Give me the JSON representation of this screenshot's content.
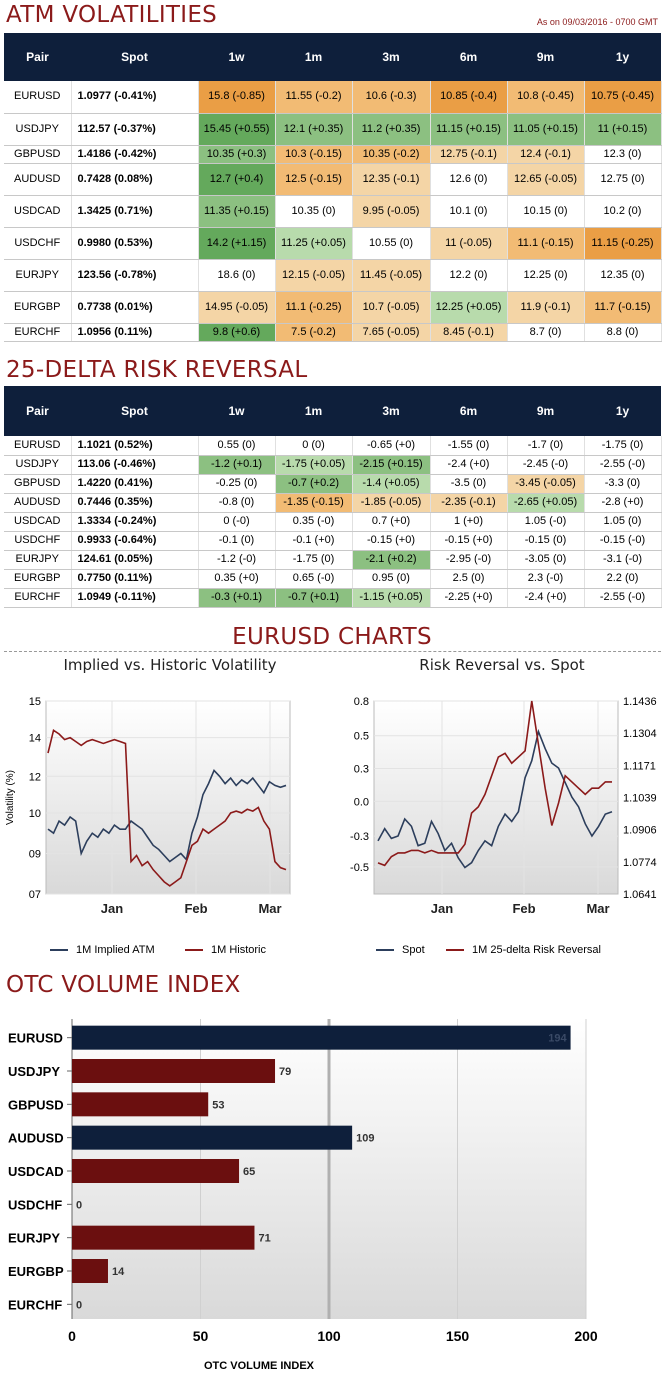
{
  "atm": {
    "title": "ATM VOLATILITIES",
    "as_of": "As on 09/03/2016 - 0700 GMT",
    "headers": [
      "Pair",
      "Spot",
      "1w",
      "1m",
      "3m",
      "6m",
      "9m",
      "1y"
    ],
    "rows": [
      {
        "pair": "EURUSD",
        "spot": "1.0977 (-0.41%)",
        "cells": [
          "15.8 (-0.85)",
          "11.55 (-0.2)",
          "10.6 (-0.3)",
          "10.85 (-0.4)",
          "10.8 (-0.45)",
          "10.75 (-0.45)"
        ],
        "colors": [
          "do",
          "mo",
          "mo",
          "do",
          "mo",
          "do"
        ]
      },
      {
        "pair": "USDJPY",
        "spot": "112.57 (-0.37%)",
        "cells": [
          "15.45 (+0.55)",
          "12.1 (+0.35)",
          "11.2 (+0.35)",
          "11.15 (+0.15)",
          "11.05 (+0.15)",
          "11 (+0.15)"
        ],
        "colors": [
          "dg",
          "mg",
          "mg",
          "mg",
          "mg",
          "mg"
        ]
      },
      {
        "pair": "GBPUSD",
        "spot": "1.4186 (-0.42%)",
        "cells": [
          "10.35 (+0.3)",
          "10.3 (-0.15)",
          "10.35 (-0.2)",
          "12.75 (-0.1)",
          "12.4 (-0.1)",
          "12.3 (0)"
        ],
        "colors": [
          "mg",
          "mo",
          "mo",
          "lo",
          "lo",
          ""
        ]
      },
      {
        "pair": "AUDUSD",
        "spot": "0.7428 (0.08%)",
        "cells": [
          "12.7 (+0.4)",
          "12.5 (-0.15)",
          "12.35 (-0.1)",
          "12.6 (0)",
          "12.65 (-0.05)",
          "12.75 (0)"
        ],
        "colors": [
          "dg",
          "mo",
          "lo",
          "",
          "lo",
          ""
        ]
      },
      {
        "pair": "USDCAD",
        "spot": "1.3425 (0.71%)",
        "cells": [
          "11.35 (+0.15)",
          "10.35 (0)",
          "9.95 (-0.05)",
          "10.1 (0)",
          "10.15 (0)",
          "10.2 (0)"
        ],
        "colors": [
          "mg",
          "",
          "lo",
          "",
          "",
          ""
        ]
      },
      {
        "pair": "USDCHF",
        "spot": "0.9980 (0.53%)",
        "cells": [
          "14.2 (+1.15)",
          "11.25 (+0.05)",
          "10.55 (0)",
          "11 (-0.05)",
          "11.1 (-0.15)",
          "11.15 (-0.25)"
        ],
        "colors": [
          "dg",
          "lg",
          "",
          "lo",
          "mo",
          "do"
        ]
      },
      {
        "pair": "EURJPY",
        "spot": "123.56 (-0.78%)",
        "cells": [
          "18.6 (0)",
          "12.15 (-0.05)",
          "11.45 (-0.05)",
          "12.2 (0)",
          "12.25 (0)",
          "12.35 (0)"
        ],
        "colors": [
          "",
          "lo",
          "lo",
          "",
          "",
          ""
        ]
      },
      {
        "pair": "EURGBP",
        "spot": "0.7738 (0.01%)",
        "cells": [
          "14.95 (-0.05)",
          "11.1 (-0.25)",
          "10.7 (-0.05)",
          "12.25 (+0.05)",
          "11.9 (-0.1)",
          "11.7 (-0.15)"
        ],
        "colors": [
          "lo",
          "mo",
          "lo",
          "lg",
          "lo",
          "mo"
        ]
      },
      {
        "pair": "EURCHF",
        "spot": "1.0956 (0.11%)",
        "cells": [
          "9.8 (+0.6)",
          "7.5 (-0.2)",
          "7.65 (-0.05)",
          "8.45 (-0.1)",
          "8.7 (0)",
          "8.8 (0)"
        ],
        "colors": [
          "dg",
          "mo",
          "lo",
          "lo",
          "",
          ""
        ]
      }
    ]
  },
  "rr": {
    "title": "25-DELTA RISK REVERSAL",
    "headers": [
      "Pair",
      "Spot",
      "1w",
      "1m",
      "3m",
      "6m",
      "9m",
      "1y"
    ],
    "rows": [
      {
        "pair": "EURUSD",
        "spot": "1.1021 (0.52%)",
        "cells": [
          "0.55 (0)",
          "0 (0)",
          "-0.65 (+0)",
          "-1.55 (0)",
          "-1.7 (0)",
          "-1.75 (0)"
        ],
        "colors": [
          "",
          "",
          "",
          "",
          "",
          ""
        ]
      },
      {
        "pair": "USDJPY",
        "spot": "113.06 (-0.46%)",
        "cells": [
          "-1.2 (+0.1)",
          "-1.75 (+0.05)",
          "-2.15 (+0.15)",
          "-2.4 (+0)",
          "-2.45 (-0)",
          "-2.55 (-0)"
        ],
        "colors": [
          "mg",
          "lg",
          "mg",
          "",
          "",
          ""
        ]
      },
      {
        "pair": "GBPUSD",
        "spot": "1.4220 (0.41%)",
        "cells": [
          "-0.25 (0)",
          "-0.7 (+0.2)",
          "-1.4 (+0.05)",
          "-3.5 (0)",
          "-3.45 (-0.05)",
          "-3.3 (0)"
        ],
        "colors": [
          "",
          "mg",
          "lg",
          "",
          "lo",
          ""
        ]
      },
      {
        "pair": "AUDUSD",
        "spot": "0.7446 (0.35%)",
        "cells": [
          "-0.8 (0)",
          "-1.35 (-0.15)",
          "-1.85 (-0.05)",
          "-2.35 (-0.1)",
          "-2.65 (+0.05)",
          "-2.8 (+0)"
        ],
        "colors": [
          "",
          "mo",
          "lo",
          "lo",
          "lg",
          ""
        ]
      },
      {
        "pair": "USDCAD",
        "spot": "1.3334 (-0.24%)",
        "cells": [
          "0 (-0)",
          "0.35 (-0)",
          "0.7 (+0)",
          "1 (+0)",
          "1.05 (-0)",
          "1.05 (0)"
        ],
        "colors": [
          "",
          "",
          "",
          "",
          "",
          ""
        ]
      },
      {
        "pair": "USDCHF",
        "spot": "0.9933 (-0.64%)",
        "cells": [
          "-0.1 (0)",
          "-0.1 (+0)",
          "-0.15 (+0)",
          "-0.15 (+0)",
          "-0.15 (0)",
          "-0.15 (-0)"
        ],
        "colors": [
          "",
          "",
          "",
          "",
          "",
          ""
        ]
      },
      {
        "pair": "EURJPY",
        "spot": "124.61 (0.05%)",
        "cells": [
          "-1.2 (-0)",
          "-1.75 (0)",
          "-2.1 (+0.2)",
          "-2.95 (-0)",
          "-3.05 (0)",
          "-3.1 (-0)"
        ],
        "colors": [
          "",
          "",
          "mg",
          "",
          "",
          ""
        ]
      },
      {
        "pair": "EURGBP",
        "spot": "0.7750 (0.11%)",
        "cells": [
          "0.35 (+0)",
          "0.65 (-0)",
          "0.95 (0)",
          "2.5 (0)",
          "2.3 (-0)",
          "2.2 (0)"
        ],
        "colors": [
          "",
          "",
          "",
          "",
          "",
          ""
        ]
      },
      {
        "pair": "EURCHF",
        "spot": "1.0949 (-0.11%)",
        "cells": [
          "-0.3 (+0.1)",
          "-0.7 (+0.1)",
          "-1.15 (+0.05)",
          "-2.25 (+0)",
          "-2.4 (+0)",
          "-2.55 (-0)"
        ],
        "colors": [
          "mg",
          "mg",
          "lg",
          "",
          "",
          ""
        ]
      }
    ]
  },
  "charts_title": "EURUSD CHARTS",
  "colors": {
    "navy": "#0e1f3b",
    "maroon": "#6b0f0f",
    "title_red": "#8b1a1a",
    "dark_orange": "#ea9e45",
    "dark_green": "#64a95c"
  },
  "chart_data": [
    {
      "type": "line",
      "title": "Implied vs. Historic Volatility",
      "ylabel": "Volatility (%)",
      "y_ticks": [
        "15",
        "14",
        "12",
        "10",
        "09",
        "07"
      ],
      "ylim": [
        7,
        15
      ],
      "x_ticks": [
        "Jan",
        "Feb",
        "Mar"
      ],
      "legend_position": "bottom",
      "series": [
        {
          "name": "1M Implied ATM",
          "color": "#2c3e5c",
          "values": [
            9.6,
            9.5,
            9.8,
            9.7,
            9.9,
            9.8,
            9.0,
            9.3,
            9.5,
            9.4,
            9.6,
            9.5,
            9.7,
            9.6,
            9.6,
            9.8,
            9.7,
            9.6,
            9.4,
            9.2,
            9.1,
            8.9,
            8.6,
            8.8,
            9.0,
            8.7,
            9.5,
            9.9,
            11.0,
            11.6,
            12.3,
            12.0,
            11.6,
            11.9,
            11.5,
            11.8,
            11.6,
            11.9,
            11.5,
            11.1,
            11.7,
            11.5,
            11.4,
            11.5
          ]
        },
        {
          "name": "1M Historic",
          "color": "#8b1a1a",
          "values": [
            13.2,
            14.2,
            14.1,
            13.9,
            14.0,
            13.8,
            13.6,
            13.8,
            13.9,
            13.8,
            13.7,
            13.8,
            13.9,
            13.8,
            13.7,
            8.6,
            8.9,
            8.4,
            8.6,
            8.2,
            7.9,
            7.6,
            7.4,
            7.6,
            7.8,
            8.6,
            9.2,
            9.3,
            9.6,
            9.5,
            9.6,
            9.7,
            9.8,
            10.0,
            10.1,
            10.0,
            10.2,
            10.1,
            10.3,
            9.8,
            9.6,
            8.6,
            8.3,
            8.2
          ]
        }
      ]
    },
    {
      "type": "line",
      "title": "Risk Reversal vs. Spot",
      "y_ticks_left": [
        "0.8",
        "0.5",
        "0.3",
        "0.0",
        "-0.3",
        "-0.5"
      ],
      "y_ticks_right": [
        "1.1436",
        "1.1304",
        "1.1171",
        "1.1039",
        "1.0906",
        "1.0774",
        "1.0641"
      ],
      "ylim_left": [
        -0.75,
        0.8
      ],
      "ylim_right": [
        1.0641,
        1.1436
      ],
      "x_ticks": [
        "Jan",
        "Feb",
        "Mar"
      ],
      "legend_position": "bottom",
      "series": [
        {
          "name": "Spot",
          "color": "#2c3e5c",
          "axis": "right",
          "values": [
            1.086,
            1.091,
            1.087,
            1.088,
            1.095,
            1.092,
            1.084,
            1.085,
            1.094,
            1.089,
            1.082,
            1.085,
            1.079,
            1.075,
            1.077,
            1.082,
            1.086,
            1.084,
            1.092,
            1.097,
            1.094,
            1.098,
            1.112,
            1.119,
            1.131,
            1.124,
            1.118,
            1.116,
            1.11,
            1.104,
            1.1,
            1.093,
            1.088,
            1.092,
            1.097,
            1.098
          ]
        },
        {
          "name": "1M 25-delta Risk Reversal",
          "color": "#8b1a1a",
          "axis": "left",
          "values": [
            -0.5,
            -0.52,
            -0.45,
            -0.42,
            -0.42,
            -0.4,
            -0.4,
            -0.42,
            -0.4,
            -0.42,
            -0.42,
            -0.42,
            -0.42,
            -0.35,
            -0.1,
            -0.05,
            0.05,
            0.2,
            0.35,
            0.38,
            0.3,
            0.35,
            0.4,
            0.8,
            0.45,
            0.1,
            -0.2,
            -0.02,
            0.2,
            0.15,
            0.1,
            0.05,
            0.1,
            0.1,
            0.15,
            0.15
          ]
        }
      ]
    },
    {
      "type": "bar",
      "title": "OTC VOLUME INDEX",
      "xlabel": "OTC VOLUME INDEX",
      "categories": [
        "EURUSD",
        "USDJPY",
        "GBPUSD",
        "AUDUSD",
        "USDCAD",
        "USDCHF",
        "EURJPY",
        "EURGBP",
        "EURCHF"
      ],
      "values": [
        194,
        79,
        53,
        109,
        65,
        0,
        71,
        14,
        0
      ],
      "value_labels": [
        "194",
        "79",
        "53",
        "109",
        "65",
        "0",
        "71",
        "14",
        "0"
      ],
      "bar_colors": [
        "#0e1f3b",
        "#6b0f0f",
        "#6b0f0f",
        "#0e1f3b",
        "#6b0f0f",
        "#6b0f0f",
        "#6b0f0f",
        "#6b0f0f",
        "#6b0f0f"
      ],
      "xlim": [
        0,
        200
      ],
      "x_ticks": [
        "0",
        "50",
        "100",
        "150",
        "200"
      ]
    }
  ]
}
